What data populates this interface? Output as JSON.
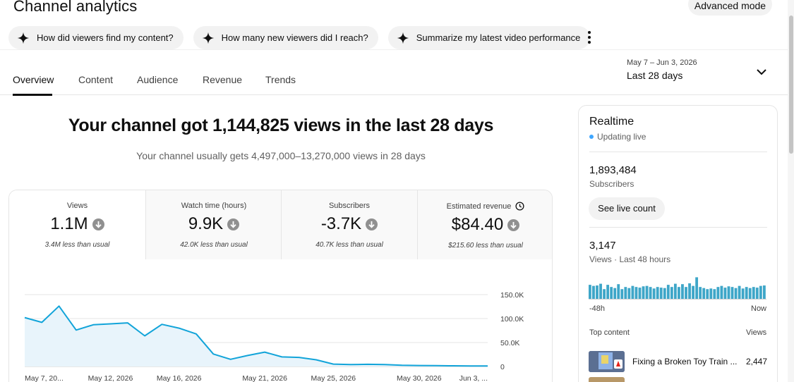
{
  "header": {
    "title": "Channel analytics",
    "advanced_mode": "Advanced mode"
  },
  "chips": [
    {
      "label": "How did viewers find my content?",
      "icon": "sparkle-icon"
    },
    {
      "label": "How many new viewers did I reach?",
      "icon": "sparkle-icon"
    },
    {
      "label": "Summarize my latest video performance",
      "icon": "sparkle-icon"
    }
  ],
  "tabs": [
    {
      "label": "Overview",
      "active": true
    },
    {
      "label": "Content"
    },
    {
      "label": "Audience"
    },
    {
      "label": "Revenue"
    },
    {
      "label": "Trends"
    }
  ],
  "date_range": {
    "dates": "May 7 – Jun 3, 2026",
    "label": "Last 28 days"
  },
  "summary": {
    "headline": "Your channel got 1,144,825 views in the last 28 days",
    "subline": "Your channel usually gets 4,497,000–13,270,000 views in 28 days"
  },
  "metrics": [
    {
      "label": "Views",
      "value": "1.1M",
      "note": "3.4M less than usual",
      "trend": "down"
    },
    {
      "label": "Watch time (hours)",
      "value": "9.9K",
      "note": "42.0K less than usual",
      "trend": "down"
    },
    {
      "label": "Subscribers",
      "value": "-3.7K",
      "note": "40.7K less than usual",
      "trend": "down"
    },
    {
      "label": "Estimated revenue",
      "value": "$84.40",
      "note": "$215.60 less than usual",
      "trend": "down",
      "label_icon": "clock-icon"
    }
  ],
  "chart_data": {
    "type": "area",
    "x": [
      "May 7",
      "May 8",
      "May 9",
      "May 10",
      "May 11",
      "May 12",
      "May 13",
      "May 14",
      "May 15",
      "May 16",
      "May 17",
      "May 18",
      "May 19",
      "May 20",
      "May 21",
      "May 22",
      "May 23",
      "May 24",
      "May 25",
      "May 26",
      "May 27",
      "May 28",
      "May 29",
      "May 30",
      "May 31",
      "Jun 1",
      "Jun 2",
      "Jun 3"
    ],
    "values": [
      102000,
      92000,
      126000,
      76000,
      87000,
      89000,
      91000,
      64000,
      88000,
      80000,
      68000,
      26000,
      15000,
      23000,
      30000,
      20000,
      19000,
      14000,
      5000,
      4000,
      4500,
      4000,
      2500,
      2000,
      1800,
      1500,
      1200,
      1000
    ],
    "x_tick_labels": [
      "May 7, 20...",
      "May 12, 2026",
      "May 16, 2026",
      "May 21, 2026",
      "May 25, 2026",
      "May 30, 2026",
      "Jun 3, ..."
    ],
    "y_tick_labels": [
      "150.0K",
      "100.0K",
      "50.0K",
      "0"
    ],
    "ylim": [
      0,
      150000
    ],
    "grid": true,
    "color": "#12a4d9",
    "fill": "#e8f4fb"
  },
  "realtime": {
    "title": "Realtime",
    "status": "Updating live",
    "subscribers": "1,893,484",
    "subscribers_label": "Subscribers",
    "see_live": "See live count",
    "views": "3,147",
    "views_label": "Views · Last 48 hours",
    "axis_left": "-48h",
    "axis_right": "Now",
    "top_content_label": "Top content",
    "top_views_label": "Views",
    "bars": [
      65,
      60,
      62,
      70,
      45,
      65,
      55,
      50,
      68,
      45,
      55,
      50,
      60,
      55,
      52,
      58,
      60,
      55,
      48,
      55,
      52,
      50,
      65,
      55,
      70,
      55,
      68,
      55,
      72,
      60,
      100,
      55,
      50,
      45,
      48,
      45,
      55,
      60,
      52,
      58,
      55,
      50,
      60,
      48,
      55,
      50,
      55,
      52,
      60,
      62
    ],
    "bar_color": "#3ea6c8",
    "top_video": {
      "title": "Fixing a Broken Toy Train ...",
      "views": "2,447"
    }
  }
}
